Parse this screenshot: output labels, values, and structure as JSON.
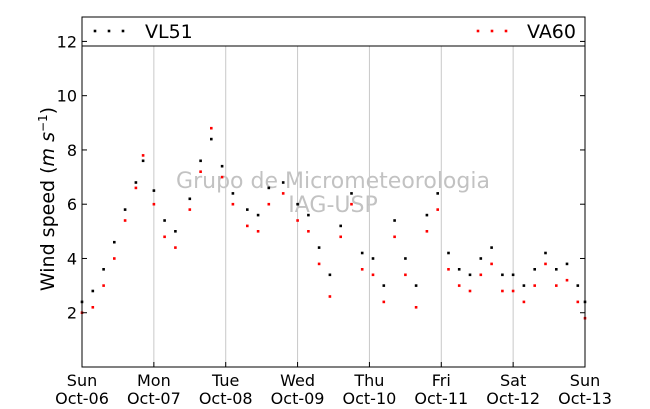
{
  "chart_data": {
    "type": "scatter",
    "ylabel": "Wind speed (m s⁻¹)",
    "ylim": [
      0,
      12.9
    ],
    "yticks": [
      2,
      4,
      6,
      8,
      10,
      12
    ],
    "xlim": [
      0,
      7
    ],
    "grid": "vertical lines at day boundaries",
    "xticks": [
      {
        "day": "Sun",
        "date": "Oct-06"
      },
      {
        "day": "Mon",
        "date": "Oct-07"
      },
      {
        "day": "Tue",
        "date": "Oct-08"
      },
      {
        "day": "Wed",
        "date": "Oct-09"
      },
      {
        "day": "Thu",
        "date": "Oct-10"
      },
      {
        "day": "Fri",
        "date": "Oct-11"
      },
      {
        "day": "Sat",
        "date": "Oct-12"
      },
      {
        "day": "Sun",
        "date": "Oct-13"
      }
    ],
    "legend_placement": "top, spanning full width",
    "watermark": [
      "Grupo de Micrometeorologia",
      "IAG-USP"
    ],
    "series": [
      {
        "name": "VL51",
        "color": "#000000",
        "x": [
          0.0,
          0.15,
          0.3,
          0.45,
          0.6,
          0.75,
          0.85,
          1.0,
          1.15,
          1.3,
          1.5,
          1.65,
          1.8,
          1.95,
          2.1,
          2.3,
          2.45,
          2.6,
          2.8,
          3.0,
          3.15,
          3.3,
          3.45,
          3.6,
          3.75,
          3.9,
          4.05,
          4.2,
          4.35,
          4.5,
          4.65,
          4.8,
          4.95,
          5.1,
          5.25,
          5.4,
          5.55,
          5.7,
          5.85,
          6.0,
          6.15,
          6.3,
          6.45,
          6.6,
          6.75,
          6.9,
          7.0
        ],
        "y": [
          2.4,
          2.8,
          3.6,
          4.6,
          5.8,
          6.8,
          7.6,
          6.5,
          5.4,
          5.0,
          6.2,
          7.6,
          8.4,
          7.4,
          6.4,
          5.8,
          5.6,
          6.6,
          6.8,
          6.0,
          5.6,
          4.4,
          3.4,
          5.2,
          6.4,
          4.2,
          4.0,
          3.0,
          5.4,
          4.0,
          3.0,
          5.6,
          6.4,
          4.2,
          3.6,
          3.4,
          4.0,
          4.4,
          3.4,
          3.4,
          3.0,
          3.6,
          4.2,
          3.6,
          3.8,
          3.0,
          2.4
        ]
      },
      {
        "name": "VA60",
        "color": "#ff0000",
        "x": [
          0.0,
          0.15,
          0.3,
          0.45,
          0.6,
          0.75,
          0.85,
          1.0,
          1.15,
          1.3,
          1.5,
          1.65,
          1.8,
          1.95,
          2.1,
          2.3,
          2.45,
          2.6,
          2.8,
          3.0,
          3.15,
          3.3,
          3.45,
          3.6,
          3.75,
          3.9,
          4.05,
          4.2,
          4.35,
          4.5,
          4.65,
          4.8,
          4.95,
          5.1,
          5.25,
          5.4,
          5.55,
          5.7,
          5.85,
          6.0,
          6.15,
          6.3,
          6.45,
          6.6,
          6.75,
          6.9,
          7.0
        ],
        "y": [
          2.0,
          2.2,
          3.0,
          4.0,
          5.4,
          6.6,
          7.8,
          6.0,
          4.8,
          4.4,
          5.8,
          7.2,
          8.8,
          7.0,
          6.0,
          5.2,
          5.0,
          6.0,
          6.4,
          5.4,
          5.0,
          3.8,
          2.6,
          4.8,
          6.0,
          3.6,
          3.4,
          2.4,
          4.8,
          3.4,
          2.2,
          5.0,
          5.8,
          3.6,
          3.0,
          2.8,
          3.4,
          3.8,
          2.8,
          2.8,
          2.4,
          3.0,
          3.8,
          3.0,
          3.2,
          2.4,
          1.8
        ]
      }
    ]
  }
}
